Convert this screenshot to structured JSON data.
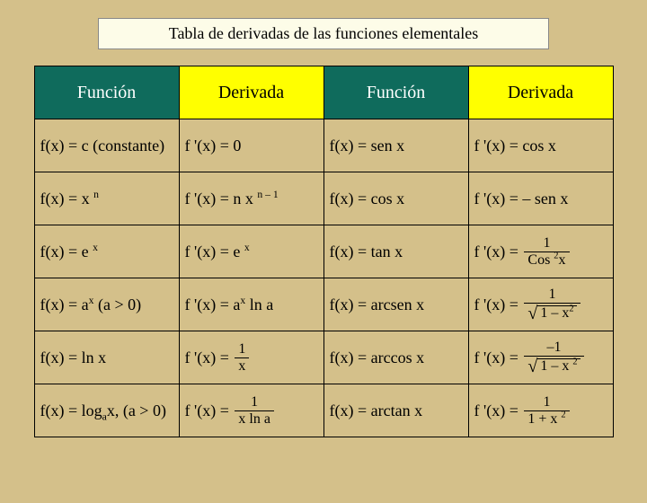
{
  "title": "Tabla de derivadas de las funciones elementales",
  "headers": {
    "funcion": "Función",
    "derivada": "Derivada"
  },
  "rows": [
    {
      "f1": "f(x) = c (constante)",
      "d1": "f '(x) = 0",
      "f2": "f(x) = sen x",
      "d2": "f '(x) = cos x"
    },
    {
      "f1_pre": "f(x) = x ",
      "f1_sup": "n",
      "d1_pre": "f '(x) = n x ",
      "d1_sup": "n – 1",
      "f2": "f(x) = cos  x",
      "d2": "f '(x) = – sen x"
    },
    {
      "f1_pre": "f(x) = e ",
      "f1_sup": "x",
      "d1_pre": "f '(x) = e ",
      "d1_sup": "x",
      "f2": "f(x) = tan x",
      "d2_eq": "f '(x) =",
      "d2_num": "1",
      "d2_den_pre": "Cos ",
      "d2_den_sup": "2",
      "d2_den_post": "x"
    },
    {
      "f1_pre": "f(x) = a",
      "f1_sup": "x",
      "f1_post": " (a > 0)",
      "d1_pre": "f '(x) = a",
      "d1_sup": "x",
      "d1_post": " ln a",
      "f2": "f(x) = arcsen x",
      "d2_eq": "f '(x) =",
      "d2_num": "1",
      "d2_sqrt_pre": "1 – x",
      "d2_sqrt_sup": "2"
    },
    {
      "f1": "f(x) = ln x",
      "d1_eq": "f '(x) =",
      "d1_num": "1",
      "d1_den": "x",
      "f2": "f(x) = arccos x",
      "d2_eq": "f '(x) =",
      "d2_num": "–1",
      "d2_sqrt_pre": "1 – x ",
      "d2_sqrt_sup": "2"
    },
    {
      "f1_pre": "f(x) = log",
      "f1_sub": "a",
      "f1_post": "x, (a > 0)",
      "d1_eq": "f '(x) =",
      "d1_num": "1",
      "d1_den": "x ln a",
      "f2": "f(x) = arctan x",
      "d2_eq": "f '(x) =",
      "d2_num": "1",
      "d2_den_pre": "1 + x ",
      "d2_den_sup": "2"
    }
  ],
  "colors": {
    "bg": "#d4c08a",
    "titleBg": "#fdfce8",
    "hFuncion": "#0f6b5c",
    "hDerivada": "#ffff00"
  }
}
